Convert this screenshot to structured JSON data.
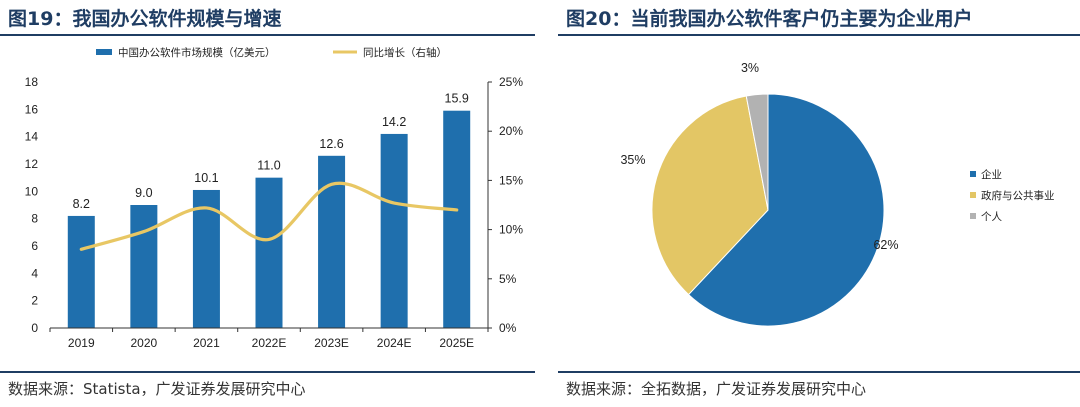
{
  "left": {
    "title": "图19：我国办公软件规模与增速",
    "source": "数据来源：Statista，广发证券发展研究中心"
  },
  "right": {
    "title": "图20：当前我国办公软件客户仍主要为企业用户",
    "source": "数据来源：全拓数据，广发证券发展研究中心"
  },
  "colors": {
    "bar": "#1f6fad",
    "line": "#e8c764",
    "pie_enterprise": "#1f6fad",
    "pie_gov": "#e3c665",
    "pie_personal": "#b2b2b2",
    "title": "#1f3d63"
  },
  "chart_data": [
    {
      "type": "bar",
      "title": "我国办公软件规模与增速",
      "categories": [
        "2019",
        "2020",
        "2021",
        "2022E",
        "2023E",
        "2024E",
        "2025E"
      ],
      "series": [
        {
          "name": "中国办公软件市场规模（亿美元）",
          "type": "bar",
          "axis": "left",
          "values": [
            8.2,
            9.0,
            10.1,
            11.0,
            12.6,
            14.2,
            15.9
          ],
          "labels": [
            "8.2",
            "9.0",
            "10.1",
            "11.0",
            "12.6",
            "14.2",
            "15.9"
          ]
        },
        {
          "name": "同比增长（右轴）",
          "type": "line",
          "axis": "right",
          "values": [
            8.0,
            9.8,
            12.2,
            9.0,
            14.6,
            12.7,
            12.0
          ]
        }
      ],
      "y_left": {
        "min": 0,
        "max": 18,
        "ticks": [
          "0",
          "2",
          "4",
          "6",
          "8",
          "10",
          "12",
          "14",
          "16",
          "18"
        ]
      },
      "y_right": {
        "min": 0,
        "max": 25,
        "ticks": [
          "0%",
          "5%",
          "10%",
          "15%",
          "20%",
          "25%"
        ]
      },
      "legend": "top"
    },
    {
      "type": "pie",
      "title": "当前我国办公软件客户仍主要为企业用户",
      "slices": [
        {
          "name": "企业",
          "value": 62,
          "label": "62%"
        },
        {
          "name": "政府与公共事业",
          "value": 35,
          "label": "35%"
        },
        {
          "name": "个人",
          "value": 3,
          "label": "3%"
        }
      ],
      "legend": "right"
    }
  ]
}
